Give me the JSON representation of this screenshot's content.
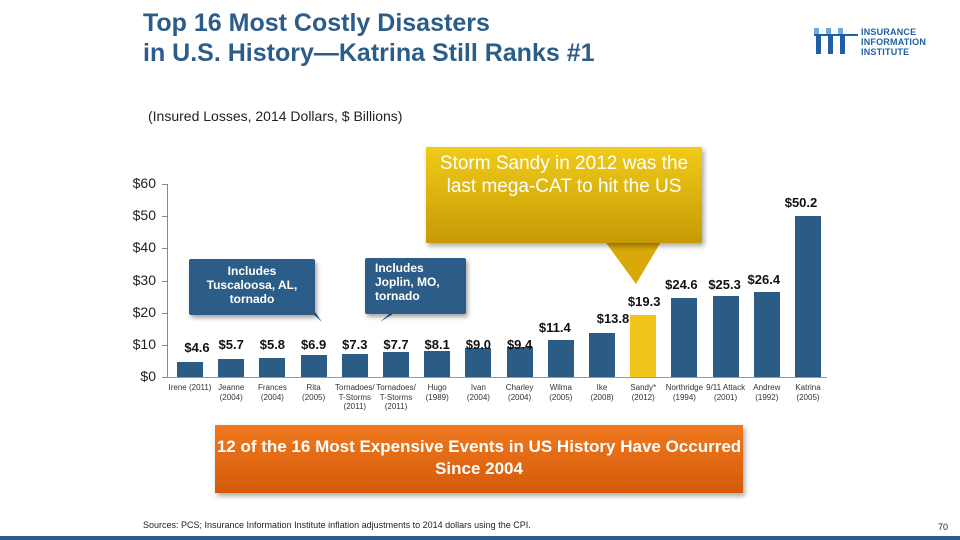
{
  "header": {
    "title_line1": "Top 16 Most Costly Disasters",
    "title_line2": "in U.S. History—Katrina Still Ranks #1",
    "subtitle": "(Insured Losses, 2014 Dollars, $ Billions)"
  },
  "logo": {
    "line1": "INSURANCE",
    "line2": "INFORMATION",
    "line3": "INSTITUTE"
  },
  "colors": {
    "bar": "#2a5c86",
    "highlight": "#f0c419",
    "title": "#2c5d89",
    "orange": "#e86d14"
  },
  "chart_data": {
    "type": "bar",
    "title": "Top 16 Most Costly Disasters in U.S. History",
    "ylabel": "Insured Losses, 2014 Dollars, $ Billions",
    "ylim": [
      0,
      60
    ],
    "yticks": [
      "$0",
      "$10",
      "$20",
      "$30",
      "$40",
      "$50",
      "$60"
    ],
    "highlight_index": 11,
    "categories": [
      {
        "name": "Irene (2011)",
        "year": ""
      },
      {
        "name": "Jeanne",
        "year": "(2004)"
      },
      {
        "name": "Frances",
        "year": "(2004)"
      },
      {
        "name": "Rita",
        "year": "(2005)"
      },
      {
        "name": "Tornadoes/ T-Storms",
        "year": "(2011)"
      },
      {
        "name": "Tornadoes/ T-Storms",
        "year": "(2011)"
      },
      {
        "name": "Hugo",
        "year": "(1989)"
      },
      {
        "name": "Ivan",
        "year": "(2004)"
      },
      {
        "name": "Charley",
        "year": "(2004)"
      },
      {
        "name": "Wilma",
        "year": "(2005)"
      },
      {
        "name": "Ike",
        "year": "(2008)"
      },
      {
        "name": "Sandy*",
        "year": "(2012)"
      },
      {
        "name": "Northridge",
        "year": "(1994)"
      },
      {
        "name": "9/11 Attack",
        "year": "(2001)"
      },
      {
        "name": "Andrew",
        "year": "(1992)"
      },
      {
        "name": "Katrina",
        "year": "(2005)"
      }
    ],
    "values": [
      4.6,
      5.7,
      5.8,
      6.9,
      7.3,
      7.7,
      8.1,
      9.0,
      9.4,
      11.4,
      13.8,
      19.3,
      24.6,
      25.3,
      26.4,
      50.2
    ],
    "value_labels": [
      "$4.6",
      "$5.7",
      "$5.8",
      "$6.9",
      "$7.3",
      "$7.7",
      "$8.1",
      "$9.0",
      "$9.4",
      "$11.4",
      "$13.8",
      "$19.3",
      "$24.6",
      "$25.3",
      "$26.4",
      "$50.2"
    ],
    "annotations": {
      "tuscaloosa": "Includes Tuscaloosa, AL, tornado",
      "joplin": "Includes Joplin, MO, tornado",
      "sandy": "Storm Sandy in 2012 was the last mega-CAT to hit the US",
      "bottom": "12 of the 16 Most Expensive Events in US History Have Occurred Since 2004"
    }
  },
  "footer": {
    "sources": "Sources: PCS; Insurance Information Institute inflation adjustments to 2014 dollars using the CPI.",
    "page": "70"
  }
}
